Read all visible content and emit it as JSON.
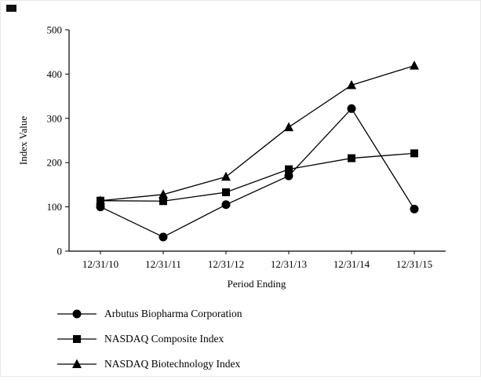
{
  "chart_data": {
    "type": "line",
    "title": "",
    "xlabel": "Period Ending",
    "ylabel": "Index Value",
    "x": [
      "12/31/10",
      "12/31/11",
      "12/31/12",
      "12/31/13",
      "12/31/14",
      "12/31/15"
    ],
    "series": [
      {
        "name": "Arbutus Biopharma Corporation",
        "marker": "circle",
        "values": [
          100,
          32,
          105,
          170,
          322,
          95
        ]
      },
      {
        "name": "NASDAQ Composite Index",
        "marker": "square",
        "values": [
          114,
          113,
          133,
          185,
          210,
          221
        ]
      },
      {
        "name": "NASDAQ Biotechnology Index",
        "marker": "triangle",
        "values": [
          114,
          128,
          168,
          280,
          375,
          419
        ]
      }
    ],
    "ylim": [
      0,
      500
    ],
    "yticks": [
      0,
      100,
      200,
      300,
      400,
      500
    ],
    "line_color": "#000000",
    "background": "#ffffff",
    "grid": "off",
    "legend_position": "bottom-left"
  }
}
